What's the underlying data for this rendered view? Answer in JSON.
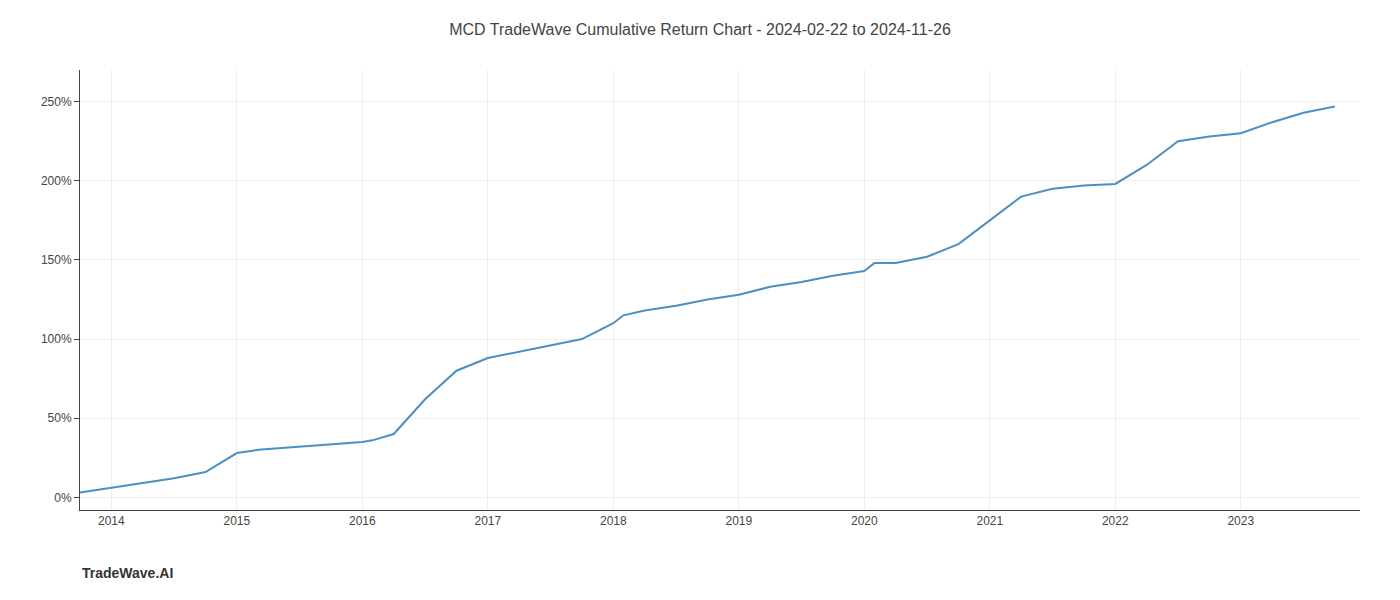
{
  "chart_data": {
    "type": "line",
    "title": "MCD TradeWave Cumulative Return Chart - 2024-02-22 to 2024-11-26",
    "annotations": [
      "TradeWave.AI"
    ],
    "x": [
      2013.75,
      2013.92,
      2014.08,
      2014.25,
      2014.5,
      2014.75,
      2015.0,
      2015.17,
      2015.33,
      2015.5,
      2015.67,
      2015.83,
      2016.0,
      2016.08,
      2016.17,
      2016.25,
      2016.5,
      2016.75,
      2017.0,
      2017.25,
      2017.5,
      2017.75,
      2018.0,
      2018.08,
      2018.25,
      2018.5,
      2018.75,
      2019.0,
      2019.25,
      2019.5,
      2019.75,
      2020.0,
      2020.08,
      2020.25,
      2020.5,
      2020.75,
      2021.0,
      2021.25,
      2021.5,
      2021.75,
      2022.0,
      2022.25,
      2022.5,
      2022.75,
      2023.0,
      2023.25,
      2023.5,
      2023.75
    ],
    "values": [
      3,
      5,
      7,
      9,
      12,
      16,
      28,
      30,
      31,
      32,
      33,
      34,
      35,
      36,
      38,
      40,
      62,
      80,
      88,
      92,
      96,
      100,
      110,
      115,
      118,
      121,
      125,
      128,
      133,
      136,
      140,
      143,
      148,
      148,
      152,
      160,
      175,
      190,
      195,
      197,
      198,
      210,
      225,
      228,
      230,
      237,
      243,
      247
    ],
    "color": "#4a90c4",
    "xlim": [
      2013.75,
      2023.95
    ],
    "xticks": [
      2014,
      2015,
      2016,
      2017,
      2018,
      2019,
      2020,
      2021,
      2022,
      2023
    ],
    "ylim": [
      -8,
      270
    ],
    "yticks": [
      {
        "value": 0,
        "label": "0%"
      },
      {
        "value": 50,
        "label": "50%"
      },
      {
        "value": 100,
        "label": "100%"
      },
      {
        "value": 150,
        "label": "150%"
      },
      {
        "value": 200,
        "label": "200%"
      },
      {
        "value": 250,
        "label": "250%"
      }
    ],
    "grid": true
  }
}
